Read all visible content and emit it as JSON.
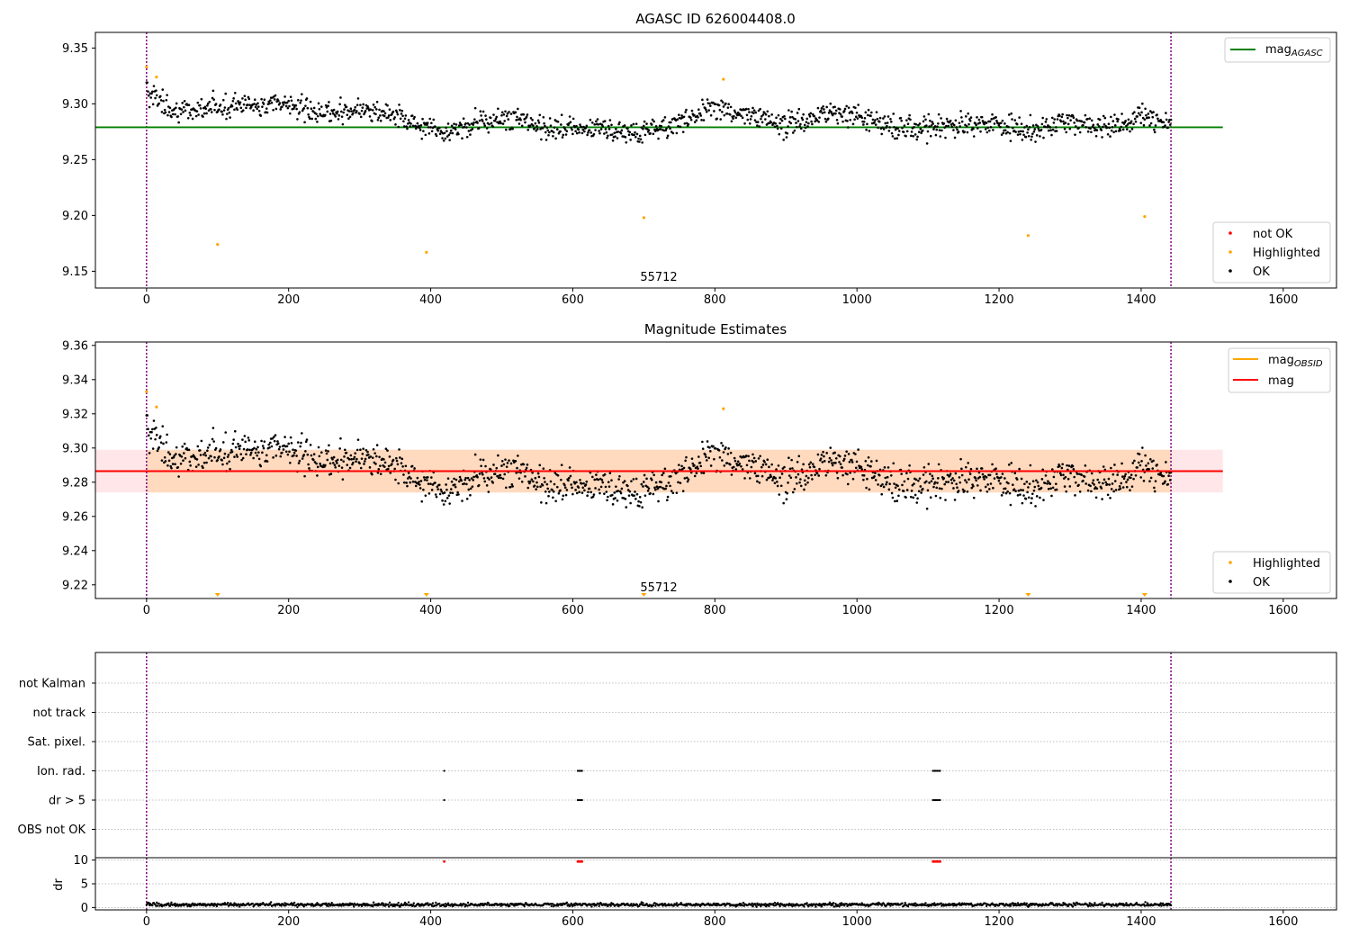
{
  "chart_data": [
    {
      "type": "scatter",
      "title": "AGASC ID 626004408.0",
      "xlim": [
        -72,
        1675
      ],
      "ylim": [
        9.135,
        9.364
      ],
      "xticks": [
        0,
        200,
        400,
        600,
        800,
        1000,
        1200,
        1400,
        1600
      ],
      "yticks": [
        9.15,
        9.2,
        9.25,
        9.3,
        9.35
      ],
      "vlines": [
        0,
        1442
      ],
      "hline": {
        "label": "mag_AGASC",
        "value": 9.279,
        "color": "#008000",
        "x_range": [
          -72,
          1515
        ]
      },
      "annotation": {
        "text": "55712",
        "x": 700
      },
      "legend_upper": {
        "label_main": "mag",
        "label_sub": "AGASC"
      },
      "legend_lower": [
        {
          "label": "not OK",
          "color": "#ff0000"
        },
        {
          "label": "Highlighted",
          "color": "#ffa500"
        },
        {
          "label": "OK",
          "color": "#000000"
        }
      ],
      "series": [
        {
          "name": "Highlighted",
          "color": "#ffa500",
          "points": [
            [
              0,
              9.333
            ],
            [
              14,
              9.324
            ],
            [
              100,
              9.174
            ],
            [
              394,
              9.167
            ],
            [
              700,
              9.198
            ],
            [
              812,
              9.322
            ],
            [
              1241,
              9.182
            ],
            [
              1405,
              9.199
            ]
          ]
        },
        {
          "name": "OK",
          "color": "#000000",
          "segments": [
            [
              0,
              9.312
            ],
            [
              40,
              9.293
            ],
            [
              90,
              9.297
            ],
            [
              140,
              9.298
            ],
            [
              200,
              9.299
            ],
            [
              250,
              9.29
            ],
            [
              300,
              9.297
            ],
            [
              340,
              9.292
            ],
            [
              380,
              9.282
            ],
            [
              420,
              9.276
            ],
            [
              470,
              9.284
            ],
            [
              520,
              9.289
            ],
            [
              560,
              9.279
            ],
            [
              620,
              9.28
            ],
            [
              680,
              9.274
            ],
            [
              740,
              9.281
            ],
            [
              800,
              9.297
            ],
            [
              850,
              9.289
            ],
            [
              900,
              9.28
            ],
            [
              950,
              9.292
            ],
            [
              1000,
              9.29
            ],
            [
              1060,
              9.277
            ],
            [
              1120,
              9.281
            ],
            [
              1180,
              9.284
            ],
            [
              1240,
              9.276
            ],
            [
              1300,
              9.285
            ],
            [
              1350,
              9.278
            ],
            [
              1400,
              9.289
            ],
            [
              1442,
              9.28
            ]
          ],
          "spread": 0.012,
          "n_points": 1400
        }
      ]
    },
    {
      "type": "scatter",
      "title": "Magnitude Estimates",
      "xlim": [
        -72,
        1675
      ],
      "ylim": [
        9.212,
        9.362
      ],
      "xticks": [
        0,
        200,
        400,
        600,
        800,
        1000,
        1200,
        1400,
        1600
      ],
      "yticks": [
        9.22,
        9.24,
        9.26,
        9.28,
        9.3,
        9.32,
        9.34,
        9.36
      ],
      "vlines": [
        0,
        1442
      ],
      "mag_line": {
        "label": "mag",
        "value": 9.2865,
        "color": "#ff0000",
        "x_range": [
          -72,
          1515
        ]
      },
      "mag_band": {
        "low": 9.274,
        "high": 9.299,
        "color": "#ffb6c1"
      },
      "obsid_band": {
        "low": 9.274,
        "high": 9.299,
        "x_range": [
          0,
          1442
        ],
        "color": "#ffa500"
      },
      "annotation": {
        "text": "55712",
        "x": 700
      },
      "legend_upper": [
        {
          "label_main": "mag",
          "label_sub": "OBSID",
          "color": "#ffa500"
        },
        {
          "label_main": "mag",
          "label_sub": "",
          "color": "#ff0000"
        }
      ],
      "legend_lower": [
        {
          "label": "Highlighted",
          "color": "#ffa500"
        },
        {
          "label": "OK",
          "color": "#000000"
        }
      ],
      "series": [
        {
          "name": "Highlighted",
          "color": "#ffa500",
          "points": [
            [
              0,
              9.333
            ],
            [
              14,
              9.324
            ],
            [
              812,
              9.323
            ]
          ],
          "arrows_at_bottom": [
            100,
            394,
            700,
            1241,
            1405
          ]
        },
        {
          "name": "OK",
          "color": "#000000",
          "same_as_panel": 0
        }
      ]
    },
    {
      "type": "scatter",
      "title": "",
      "xlim": [
        -72,
        1675
      ],
      "xticks": [
        0,
        200,
        400,
        600,
        800,
        1000,
        1200,
        1400,
        1600
      ],
      "vlines": [
        0,
        1442
      ],
      "flag_categories": [
        "not Kalman",
        "not track",
        "Sat. pixel.",
        "Ion. rad.",
        "dr > 5",
        "OBS not OK"
      ],
      "flags": {
        "Ion. rad.": [
          419,
          607,
          609,
          611,
          613,
          1107,
          1109,
          1111,
          1113,
          1115,
          1117
        ],
        "dr > 5": [
          419,
          607,
          609,
          611,
          613,
          1107,
          1109,
          1111,
          1113,
          1115,
          1117
        ]
      },
      "dr_ylabel": "dr",
      "dr_yticks": [
        0,
        5,
        10
      ],
      "dr_ylim": [
        -0.5,
        10.5
      ],
      "dr_baseline": 0.6,
      "dr_high_points": [
        [
          419,
          10
        ],
        [
          607,
          10
        ],
        [
          609,
          10
        ],
        [
          611,
          10
        ],
        [
          613,
          10
        ],
        [
          1107,
          10
        ],
        [
          1109,
          10
        ],
        [
          1111,
          10
        ],
        [
          1113,
          10
        ],
        [
          1115,
          10
        ],
        [
          1117,
          10
        ]
      ]
    }
  ]
}
